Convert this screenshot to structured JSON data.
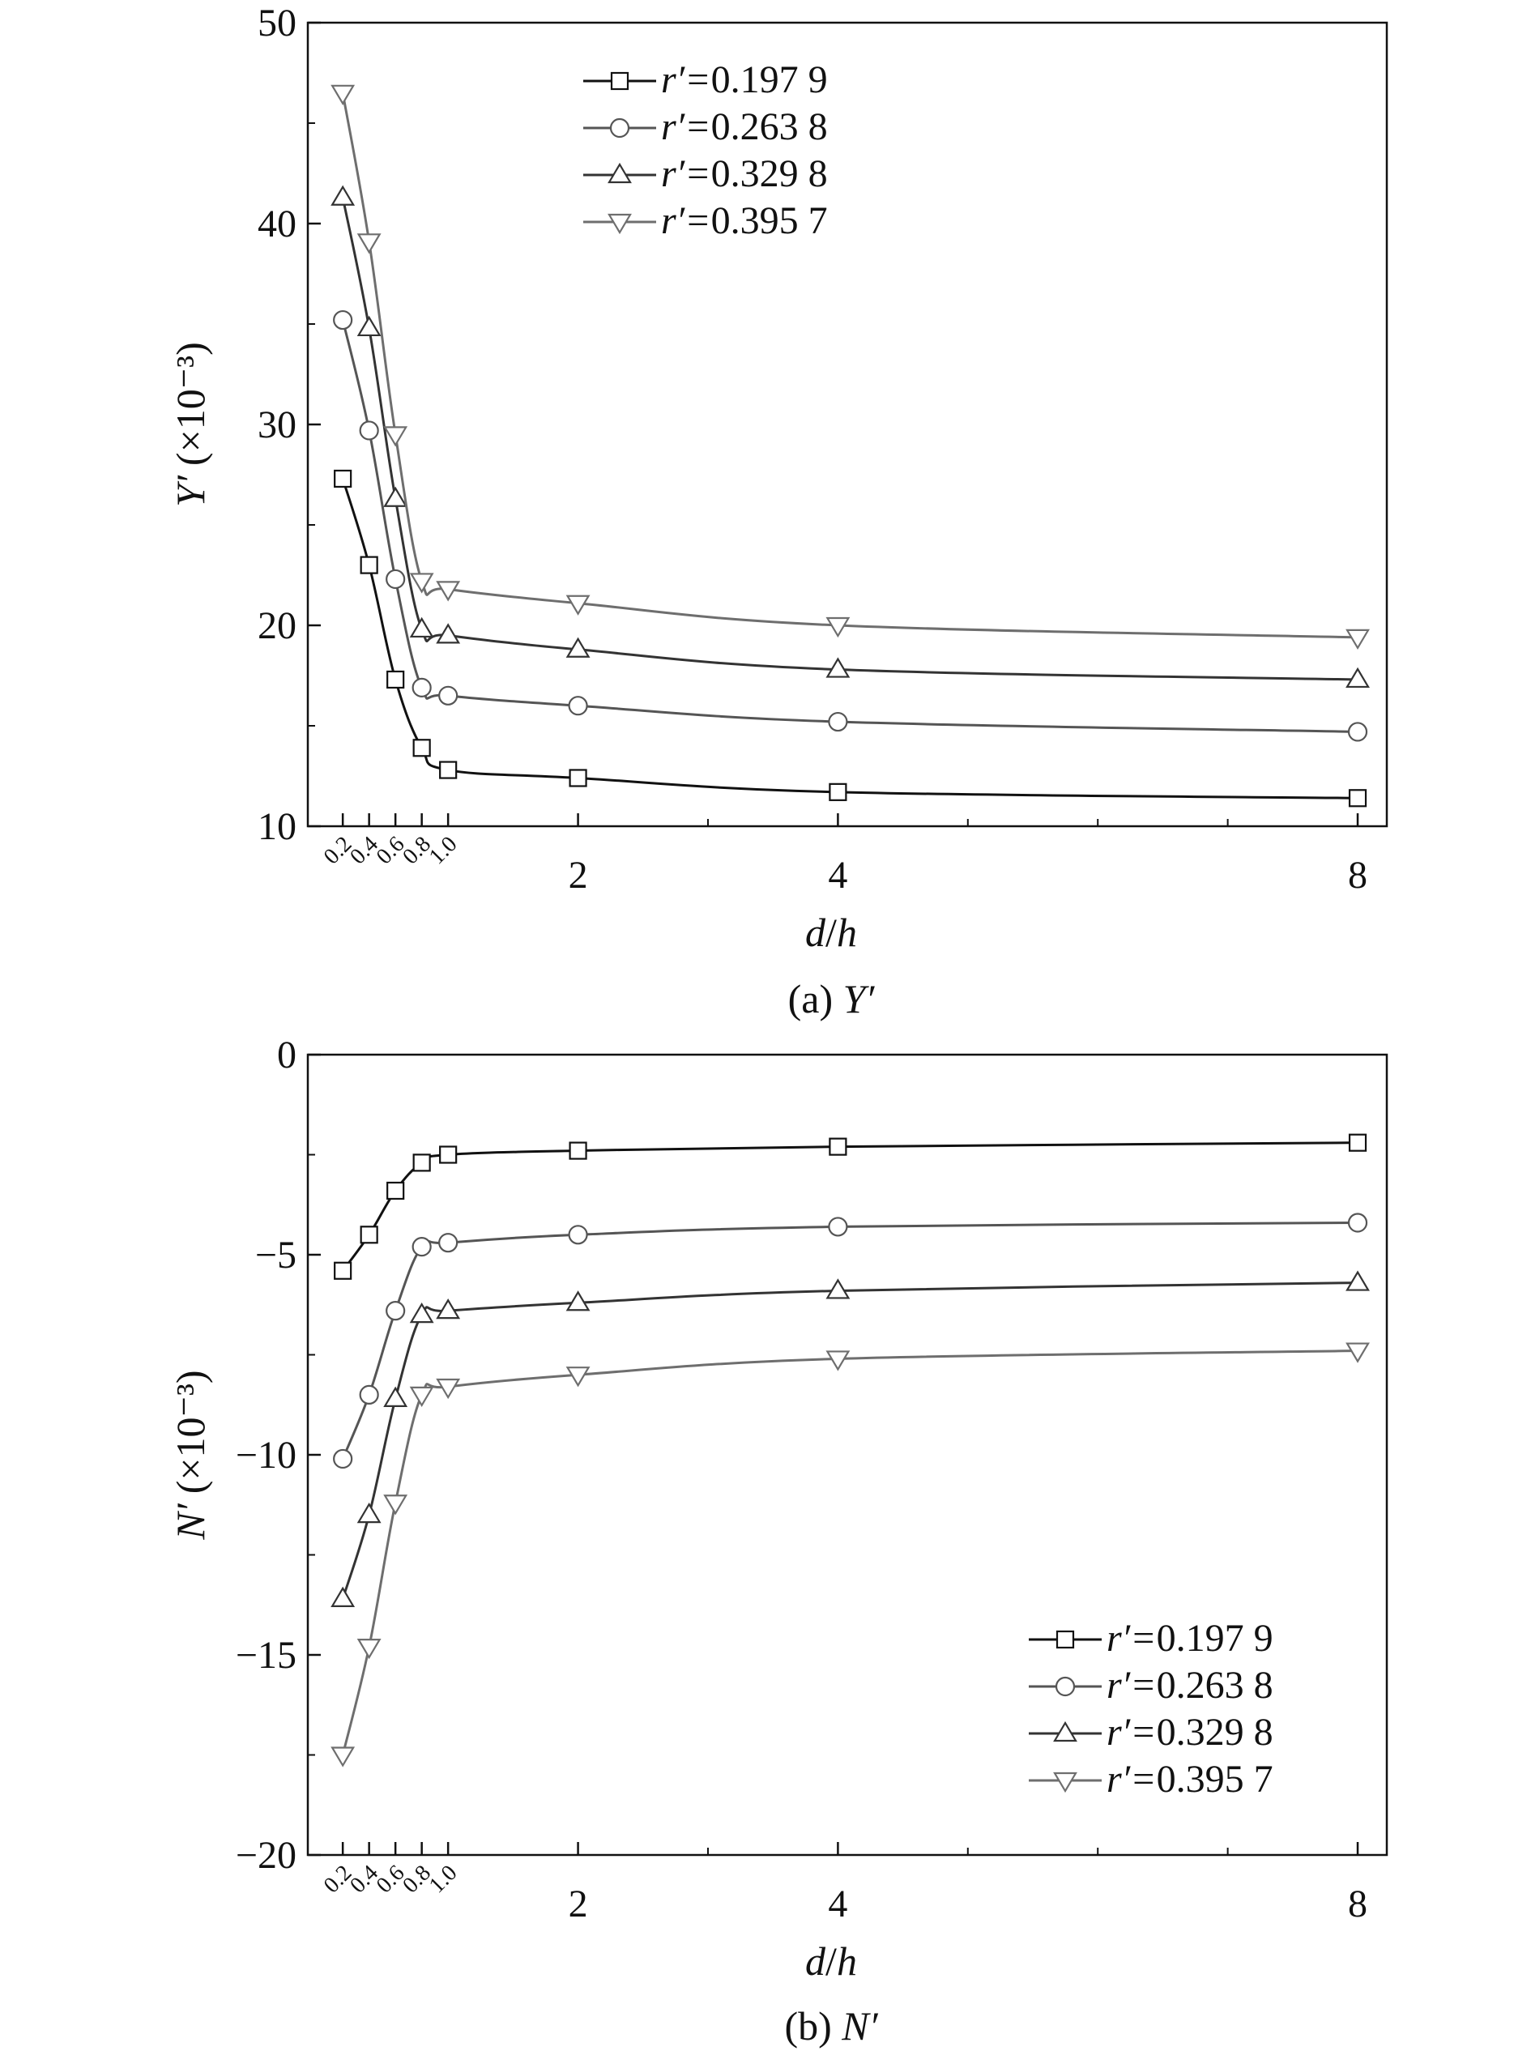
{
  "colors": {
    "background": "#ffffff",
    "axis": "#111111",
    "series": [
      "#111111",
      "#555555",
      "#333333",
      "#6e6e6e"
    ]
  },
  "chart_data": [
    {
      "type": "line",
      "ylabel": {
        "var": "Y′",
        "unit": "(×10⁻³)"
      },
      "xlabel": {
        "num": "d",
        "sep": "/",
        "den": "h"
      },
      "caption": {
        "prefix": "(a) ",
        "var": "Y′"
      },
      "xlim": [
        0,
        8
      ],
      "ylim": [
        10,
        50
      ],
      "x_scale": "piecewise: 0–1 expanded, 1–8 linear",
      "x_major_ticks": [
        "2",
        "4",
        "8"
      ],
      "x_small_ticks": [
        "0.2",
        "0.4",
        "0.6",
        "0.8",
        "1.0"
      ],
      "y_ticks": [
        "10",
        "20",
        "30",
        "40",
        "50"
      ],
      "legend_position": "top-center",
      "x": [
        0.2,
        0.4,
        0.6,
        0.8,
        1.0,
        2,
        4,
        8
      ],
      "series": [
        {
          "name": "0.197 9",
          "marker": "square",
          "values": [
            27.3,
            23.0,
            17.3,
            13.9,
            12.8,
            12.4,
            11.7,
            11.4
          ]
        },
        {
          "name": "0.263 8",
          "marker": "circle",
          "values": [
            35.2,
            29.7,
            22.3,
            16.9,
            16.5,
            16.0,
            15.2,
            14.7
          ]
        },
        {
          "name": "0.329 8",
          "marker": "triangle-up",
          "values": [
            41.3,
            34.8,
            26.3,
            19.8,
            19.5,
            18.8,
            17.8,
            17.3
          ]
        },
        {
          "name": "0.395 7",
          "marker": "triangle-down",
          "values": [
            46.5,
            39.1,
            29.5,
            22.2,
            21.8,
            21.1,
            20.0,
            19.4
          ]
        }
      ],
      "legend_prefix": "r′=",
      "grid": false
    },
    {
      "type": "line",
      "ylabel": {
        "var": "N′",
        "unit": "(×10⁻³)"
      },
      "xlabel": {
        "num": "d",
        "sep": "/",
        "den": "h"
      },
      "caption": {
        "prefix": "(b) ",
        "var": "N′"
      },
      "xlim": [
        0,
        8
      ],
      "ylim": [
        -20,
        0
      ],
      "x_scale": "piecewise: 0–1 expanded, 1–8 linear",
      "x_major_ticks": [
        "2",
        "4",
        "8"
      ],
      "x_small_ticks": [
        "0.2",
        "0.4",
        "0.6",
        "0.8",
        "1.0"
      ],
      "y_ticks": [
        "−20",
        "−15",
        "−10",
        "−5",
        "0"
      ],
      "legend_position": "bottom-right",
      "x": [
        0.2,
        0.4,
        0.6,
        0.8,
        1.0,
        2,
        4,
        8
      ],
      "series": [
        {
          "name": "0.197 9",
          "marker": "square",
          "values": [
            -5.4,
            -4.5,
            -3.4,
            -2.7,
            -2.5,
            -2.4,
            -2.3,
            -2.2
          ]
        },
        {
          "name": "0.263 8",
          "marker": "circle",
          "values": [
            -10.1,
            -8.5,
            -6.4,
            -4.8,
            -4.7,
            -4.5,
            -4.3,
            -4.2
          ]
        },
        {
          "name": "0.329 8",
          "marker": "triangle-up",
          "values": [
            -13.6,
            -11.5,
            -8.6,
            -6.5,
            -6.4,
            -6.2,
            -5.9,
            -5.7
          ]
        },
        {
          "name": "0.395 7",
          "marker": "triangle-down",
          "values": [
            -17.5,
            -14.8,
            -11.2,
            -8.5,
            -8.3,
            -8.0,
            -7.6,
            -7.4
          ]
        }
      ],
      "legend_prefix": "r′=",
      "grid": false
    }
  ]
}
